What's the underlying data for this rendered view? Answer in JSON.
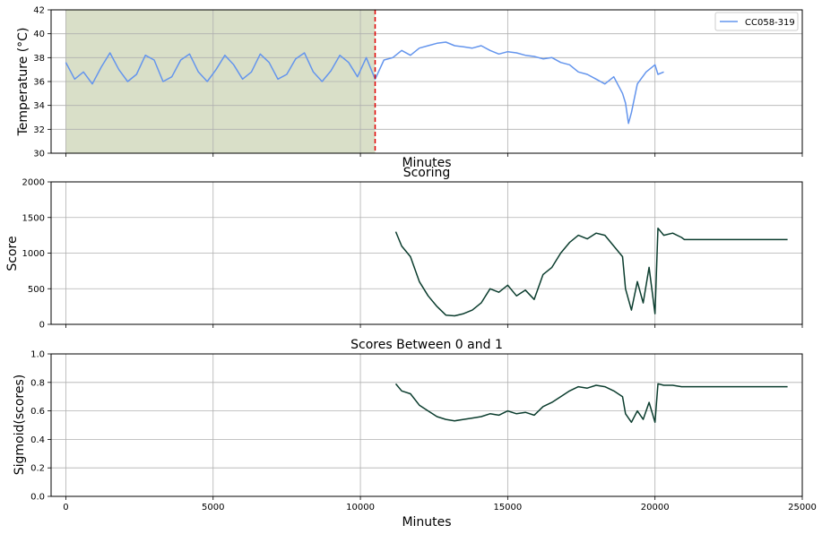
{
  "chart_data": [
    {
      "type": "line",
      "title": "",
      "xlabel": "Minutes",
      "ylabel": "Temperature (°C)",
      "xlim": [
        -500,
        25000
      ],
      "ylim": [
        30,
        42
      ],
      "yticks": [
        30,
        32,
        34,
        36,
        38,
        40,
        42
      ],
      "xticks": [
        0,
        5000,
        10000,
        15000,
        20000,
        25000
      ],
      "show_xticklabels": false,
      "grid": true,
      "legend": "top-right",
      "shaded_region": {
        "x": [
          0,
          10500
        ],
        "color": "#d9dfc8"
      },
      "vline": {
        "x": 10500,
        "color": "#e00000",
        "style": "dashed"
      },
      "series": [
        {
          "name": "CC058-319",
          "color": "#6495ed",
          "x": [
            0,
            300,
            600,
            900,
            1200,
            1500,
            1800,
            2100,
            2400,
            2700,
            3000,
            3300,
            3600,
            3900,
            4200,
            4500,
            4800,
            5100,
            5400,
            5700,
            6000,
            6300,
            6600,
            6900,
            7200,
            7500,
            7800,
            8100,
            8400,
            8700,
            9000,
            9300,
            9600,
            9900,
            10200,
            10500,
            10800,
            11100,
            11400,
            11700,
            12000,
            12300,
            12600,
            12900,
            13200,
            13500,
            13800,
            14100,
            14400,
            14700,
            15000,
            15300,
            15600,
            15900,
            16200,
            16500,
            16800,
            17100,
            17400,
            17700,
            18000,
            18300,
            18600,
            18900,
            19000,
            19100,
            19200,
            19400,
            19700,
            20000,
            20100,
            20300
          ],
          "y": [
            37.6,
            36.2,
            36.8,
            35.8,
            37.2,
            38.4,
            37.0,
            36.0,
            36.6,
            38.2,
            37.8,
            36.0,
            36.4,
            37.8,
            38.3,
            36.8,
            36.0,
            37.0,
            38.2,
            37.4,
            36.2,
            36.8,
            38.3,
            37.6,
            36.2,
            36.6,
            37.9,
            38.4,
            36.8,
            36.0,
            36.9,
            38.2,
            37.6,
            36.4,
            38.0,
            36.2,
            37.8,
            38.0,
            38.6,
            38.2,
            38.8,
            39.0,
            39.2,
            39.3,
            39.0,
            38.9,
            38.8,
            39.0,
            38.6,
            38.3,
            38.5,
            38.4,
            38.2,
            38.1,
            37.9,
            38.0,
            37.6,
            37.4,
            36.8,
            36.6,
            36.2,
            35.8,
            36.4,
            35.0,
            34.2,
            32.5,
            33.4,
            35.8,
            36.8,
            37.4,
            36.6,
            36.8
          ]
        }
      ]
    },
    {
      "type": "line",
      "title": "Scoring",
      "xlabel": "",
      "ylabel": "Score",
      "xlim": [
        -500,
        25000
      ],
      "ylim": [
        0,
        2000
      ],
      "yticks": [
        0,
        500,
        1000,
        1500,
        2000
      ],
      "xticks": [
        0,
        5000,
        10000,
        15000,
        20000,
        25000
      ],
      "show_xticklabels": false,
      "grid": true,
      "series": [
        {
          "color": "#0b3d2e",
          "x": [
            11200,
            11400,
            11700,
            12000,
            12300,
            12600,
            12900,
            13200,
            13500,
            13800,
            14100,
            14400,
            14700,
            15000,
            15300,
            15600,
            15900,
            16200,
            16500,
            16800,
            17100,
            17400,
            17700,
            18000,
            18300,
            18600,
            18900,
            19000,
            19200,
            19400,
            19600,
            19800,
            20000,
            20100,
            20300,
            20600,
            20900,
            21000,
            24500
          ],
          "y": [
            1300,
            1100,
            950,
            600,
            400,
            250,
            130,
            120,
            150,
            200,
            300,
            500,
            450,
            550,
            400,
            480,
            350,
            700,
            800,
            1000,
            1150,
            1250,
            1200,
            1280,
            1250,
            1100,
            950,
            500,
            200,
            600,
            300,
            800,
            150,
            1350,
            1250,
            1280,
            1220,
            1190,
            1190
          ]
        }
      ]
    },
    {
      "type": "line",
      "title": "Scores Between 0 and 1",
      "xlabel": "Minutes",
      "ylabel": "Sigmoid(scores)",
      "xlim": [
        -500,
        25000
      ],
      "ylim": [
        0.0,
        1.0
      ],
      "yticks": [
        0.0,
        0.2,
        0.4,
        0.6,
        0.8,
        1.0
      ],
      "ytick_labels": [
        "0.0",
        "0.2",
        "0.4",
        "0.6",
        "0.8",
        "1.0"
      ],
      "xticks": [
        0,
        5000,
        10000,
        15000,
        20000,
        25000
      ],
      "show_xticklabels": true,
      "grid": true,
      "series": [
        {
          "color": "#0b3d2e",
          "x": [
            11200,
            11400,
            11700,
            12000,
            12300,
            12600,
            12900,
            13200,
            13500,
            13800,
            14100,
            14400,
            14700,
            15000,
            15300,
            15600,
            15900,
            16200,
            16500,
            16800,
            17100,
            17400,
            17700,
            18000,
            18300,
            18600,
            18900,
            19000,
            19200,
            19400,
            19600,
            19800,
            20000,
            20100,
            20300,
            20600,
            20900,
            21000,
            24500
          ],
          "y": [
            0.79,
            0.74,
            0.72,
            0.64,
            0.6,
            0.56,
            0.54,
            0.53,
            0.54,
            0.55,
            0.56,
            0.58,
            0.57,
            0.6,
            0.58,
            0.59,
            0.57,
            0.63,
            0.66,
            0.7,
            0.74,
            0.77,
            0.76,
            0.78,
            0.77,
            0.74,
            0.7,
            0.58,
            0.52,
            0.6,
            0.54,
            0.66,
            0.52,
            0.79,
            0.78,
            0.78,
            0.77,
            0.77,
            0.77
          ]
        }
      ]
    }
  ]
}
